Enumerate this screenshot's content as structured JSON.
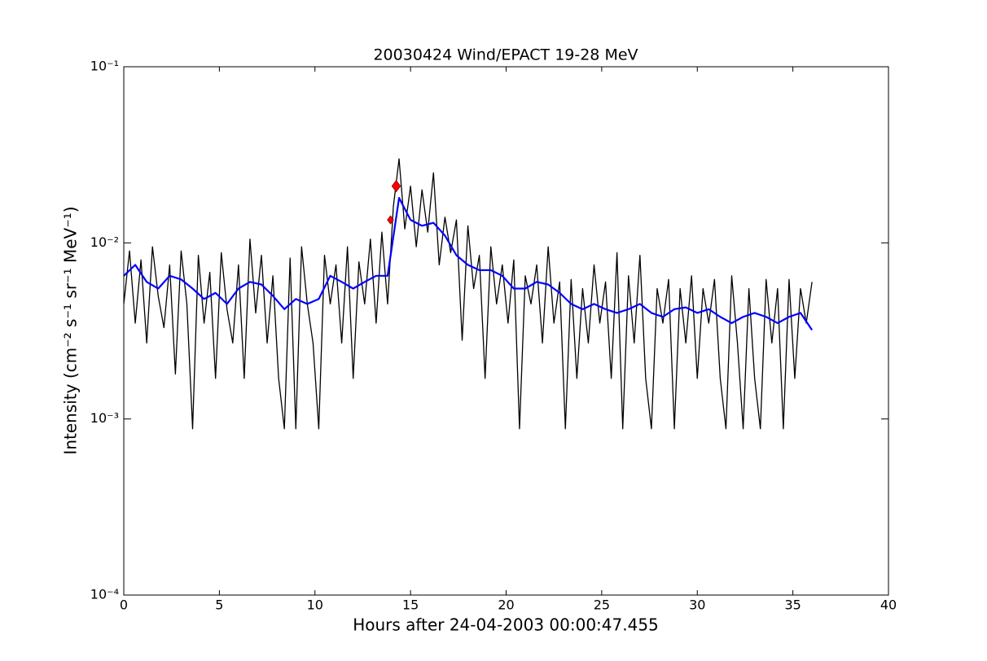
{
  "chart_data": {
    "type": "line",
    "title": "20030424 Wind/EPACT 19-28 MeV",
    "x_label": "Hours after 24-04-2003 00:00:47.455",
    "y_label": "Intensity (cm⁻² s⁻¹ sr⁻¹ MeV⁻¹)",
    "log_y": true,
    "xlim": [
      0,
      40
    ],
    "xticks": [
      0,
      5,
      10,
      15,
      20,
      25,
      30,
      35,
      40
    ],
    "ylim": [
      0.0001,
      0.1
    ],
    "yticks": [
      {
        "value": 0.0001,
        "label": "10⁻⁴"
      },
      {
        "value": 0.001,
        "label": "10⁻³"
      },
      {
        "value": 0.01,
        "label": "10⁻²"
      },
      {
        "value": 0.1,
        "label": "10⁻¹"
      }
    ],
    "series": [
      {
        "color": "#000000",
        "mode": "line",
        "x": [
          0.0,
          0.3,
          0.6,
          0.9,
          1.2,
          1.5,
          1.8,
          2.1,
          2.4,
          2.7,
          3.0,
          3.3,
          3.6,
          3.9,
          4.2,
          4.5,
          4.8,
          5.1,
          5.4,
          5.7,
          6.0,
          6.3,
          6.6,
          6.9,
          7.2,
          7.5,
          7.8,
          8.1,
          8.4,
          8.7,
          9.0,
          9.3,
          9.6,
          9.9,
          10.2,
          10.5,
          10.8,
          11.1,
          11.4,
          11.7,
          12.0,
          12.3,
          12.6,
          12.9,
          13.2,
          13.5,
          13.8,
          14.1,
          14.4,
          14.7,
          15.0,
          15.3,
          15.6,
          15.9,
          16.2,
          16.5,
          16.8,
          17.1,
          17.4,
          17.7,
          18.0,
          18.3,
          18.6,
          18.9,
          19.2,
          19.5,
          19.8,
          20.1,
          20.4,
          20.7,
          21.0,
          21.3,
          21.6,
          21.9,
          22.2,
          22.5,
          22.8,
          23.1,
          23.4,
          23.7,
          24.0,
          24.3,
          24.6,
          24.9,
          25.2,
          25.5,
          25.8,
          26.1,
          26.4,
          26.7,
          27.0,
          27.3,
          27.6,
          27.9,
          28.2,
          28.5,
          28.8,
          29.1,
          29.4,
          29.7,
          30.0,
          30.3,
          30.6,
          30.9,
          31.2,
          31.5,
          31.8,
          32.1,
          32.4,
          32.7,
          33.0,
          33.3,
          33.6,
          33.9,
          34.2,
          34.5,
          34.8,
          35.1,
          35.4,
          35.7,
          36.0
        ],
        "values": [
          0.0045,
          0.009,
          0.0035,
          0.008,
          0.0027,
          0.0095,
          0.005,
          0.0033,
          0.0075,
          0.0018,
          0.009,
          0.0045,
          0.00088,
          0.0085,
          0.0035,
          0.0068,
          0.0017,
          0.0088,
          0.0042,
          0.0027,
          0.0075,
          0.0017,
          0.0105,
          0.004,
          0.0085,
          0.0027,
          0.0065,
          0.0017,
          0.00088,
          0.0082,
          0.00088,
          0.0095,
          0.0045,
          0.0027,
          0.00088,
          0.0085,
          0.0045,
          0.0075,
          0.0027,
          0.0095,
          0.0017,
          0.0078,
          0.0045,
          0.0105,
          0.0035,
          0.0115,
          0.0045,
          0.016,
          0.03,
          0.012,
          0.021,
          0.0095,
          0.02,
          0.0115,
          0.025,
          0.0075,
          0.014,
          0.0088,
          0.0135,
          0.0028,
          0.0125,
          0.0055,
          0.0085,
          0.0017,
          0.0095,
          0.0045,
          0.0075,
          0.0035,
          0.008,
          0.00088,
          0.0065,
          0.0045,
          0.0075,
          0.0027,
          0.0095,
          0.0035,
          0.006,
          0.00088,
          0.0062,
          0.0017,
          0.0055,
          0.0027,
          0.0075,
          0.0035,
          0.006,
          0.0017,
          0.0088,
          0.00088,
          0.0065,
          0.0027,
          0.0085,
          0.0017,
          0.00088,
          0.0055,
          0.0035,
          0.0062,
          0.00088,
          0.0055,
          0.0027,
          0.0065,
          0.0017,
          0.0055,
          0.0035,
          0.0062,
          0.0017,
          0.00088,
          0.0065,
          0.0027,
          0.00088,
          0.0055,
          0.0017,
          0.00088,
          0.0062,
          0.0027,
          0.0055,
          0.00088,
          0.0062,
          0.0017,
          0.0055,
          0.0035,
          0.006
        ]
      },
      {
        "color": "#0000ff",
        "mode": "line",
        "x": [
          0.0,
          0.6,
          1.2,
          1.8,
          2.4,
          3.0,
          3.6,
          4.2,
          4.8,
          5.4,
          6.0,
          6.6,
          7.2,
          7.8,
          8.4,
          9.0,
          9.6,
          10.2,
          10.8,
          11.4,
          12.0,
          12.6,
          13.2,
          13.8,
          14.4,
          15.0,
          15.6,
          16.2,
          16.8,
          17.4,
          18.0,
          18.6,
          19.2,
          19.8,
          20.4,
          21.0,
          21.6,
          22.2,
          22.8,
          23.4,
          24.0,
          24.6,
          25.2,
          25.8,
          26.4,
          27.0,
          27.6,
          28.2,
          28.8,
          29.4,
          30.0,
          30.6,
          31.2,
          31.8,
          32.4,
          33.0,
          33.6,
          34.2,
          34.8,
          35.4,
          36.0
        ],
        "values": [
          0.0065,
          0.0075,
          0.006,
          0.0055,
          0.0065,
          0.0062,
          0.0055,
          0.0048,
          0.0052,
          0.0045,
          0.0055,
          0.006,
          0.0058,
          0.005,
          0.0042,
          0.0048,
          0.0045,
          0.0048,
          0.0065,
          0.006,
          0.0055,
          0.006,
          0.0065,
          0.0065,
          0.018,
          0.0135,
          0.0125,
          0.013,
          0.011,
          0.0085,
          0.0075,
          0.007,
          0.007,
          0.0065,
          0.0055,
          0.0055,
          0.006,
          0.0058,
          0.0052,
          0.0045,
          0.0042,
          0.0045,
          0.0042,
          0.004,
          0.0042,
          0.0045,
          0.004,
          0.0038,
          0.0042,
          0.0043,
          0.004,
          0.0042,
          0.0038,
          0.0035,
          0.0038,
          0.004,
          0.0038,
          0.0035,
          0.0038,
          0.004,
          0.0032
        ]
      },
      {
        "color": "#ff0000",
        "mode": "markers",
        "x": [
          13.95,
          14.25
        ],
        "values": [
          0.0135,
          0.021
        ]
      }
    ]
  }
}
